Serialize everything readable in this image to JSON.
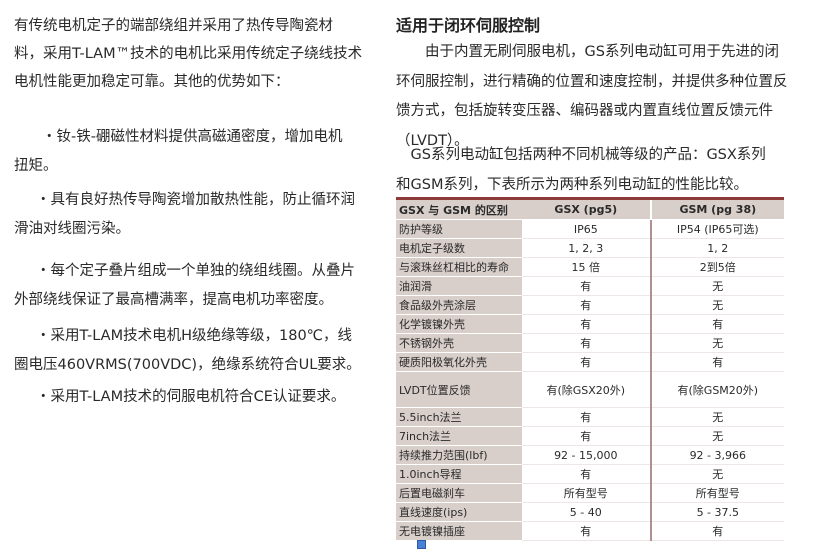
{
  "left": {
    "intro": [
      "有传统电机定子的端部绕组并采用了热传导陶瓷材",
      "料，采用T-LAM™技术的电机比采用传统定子绕线技术",
      "电机性能更加稳定可靠。其他的优势如下："
    ],
    "bullets": [
      [
        "・钕-铁-硼磁性材料提供高磁通密度，增加电机",
        "扭矩。"
      ],
      [
        "・具有良好热传导陶瓷增加散热性能，防止循环润",
        "滑油对线圈污染。"
      ],
      [
        "・每个定子叠片组成一个单独的绕组线圈。从叠片",
        "外部绕线保证了最高槽满率，提高电机功率密度。"
      ],
      [
        "・采用T-LAM技术电机H级绝缘等级，180℃，线",
        "圈电压460VRMS(700VDC)，绝缘系统符合UL要求。"
      ],
      [
        "・采用T-LAM技术的伺服电机符合CE认证要求。"
      ]
    ]
  },
  "right": {
    "heading": "适用于闭环伺服控制",
    "para1": [
      "　　由于内置无刷伺服电机，GS系列电动缸可用于先进的闭",
      "环伺服控制，进行精确的位置和速度控制，并提供多种位置反",
      "馈方式，包括旋转变压器、编码器或内置直线位置反馈元件",
      "（LVDT）。"
    ],
    "para2": [
      "　GS系列电动缸包括两种不同机械等级的产品：GSX系列",
      "和GSM系列，下表所示为两种系列电动缸的性能比较。"
    ]
  },
  "table": {
    "headers": [
      "GSX 与 GSM 的区别",
      "GSX (pg5)",
      "GSM (pg 38)"
    ],
    "rows": [
      [
        "防护等级",
        "IP65",
        "IP54 (IP65可选)"
      ],
      [
        "电机定子级数",
        "1, 2, 3",
        "1, 2"
      ],
      [
        "与滚珠丝杠相比的寿命",
        "15 倍",
        "2到5倍"
      ],
      [
        "油润滑",
        "有",
        "无"
      ],
      [
        "食品级外壳涂层",
        "有",
        "无"
      ],
      [
        "化学镀镍外壳",
        "有",
        "有"
      ],
      [
        "不锈钢外壳",
        "有",
        "无"
      ],
      [
        "硬质阳极氧化外壳",
        "有",
        "有"
      ],
      [
        "LVDT位置反馈",
        "有(除GSX20外)",
        "有(除GSM20外)"
      ],
      [
        "5.5inch法兰",
        "有",
        "无"
      ],
      [
        "7inch法兰",
        "有",
        "无"
      ],
      [
        "持续推力范围(lbf)",
        "92 - 15,000",
        "92 - 3,966"
      ],
      [
        "1.0inch导程",
        "有",
        "无"
      ],
      [
        "后置电磁刹车",
        "所有型号",
        "所有型号"
      ],
      [
        "直线速度(ips)",
        "5 - 40",
        "5 - 37.5"
      ],
      [
        "无电镀镍插座",
        "有",
        "有"
      ]
    ]
  },
  "colors": {
    "accent": "#8e3a3a",
    "label_bg": "#d8ceca"
  }
}
